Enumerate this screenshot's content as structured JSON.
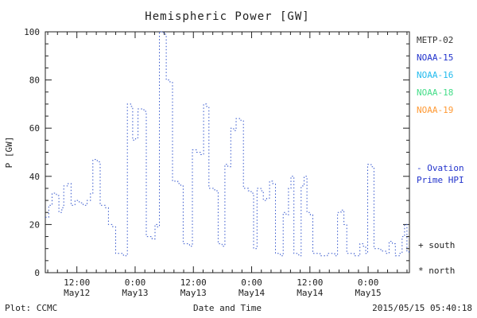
{
  "chart_data": {
    "type": "line",
    "title": "Hemispheric Power [GW]",
    "xlabel": "Date and Time",
    "ylabel": "P [GW]",
    "ylim": [
      0,
      100
    ],
    "yticks": [
      0,
      20,
      40,
      60,
      80,
      100
    ],
    "x_unit": "hours from 2015-05-12 00:00",
    "xlim": [
      5.5,
      80.5
    ],
    "xticks": [
      {
        "hour": 12,
        "time": "12:00",
        "date": "May12"
      },
      {
        "hour": 24,
        "time": "0:00",
        "date": "May13"
      },
      {
        "hour": 36,
        "time": "12:00",
        "date": "May13"
      },
      {
        "hour": 48,
        "time": "0:00",
        "date": "May14"
      },
      {
        "hour": 60,
        "time": "12:00",
        "date": "May14"
      },
      {
        "hour": 72,
        "time": "0:00",
        "date": "May15"
      }
    ],
    "grid": false,
    "line_style": "dotted-step",
    "series": [
      {
        "name": "Ovation Prime HPI",
        "color": "#3355cc",
        "points": [
          [
            5.5,
            23
          ],
          [
            6.2,
            28
          ],
          [
            6.9,
            33
          ],
          [
            7.8,
            32
          ],
          [
            8.3,
            25
          ],
          [
            8.9,
            27
          ],
          [
            9.3,
            36
          ],
          [
            10.2,
            37
          ],
          [
            10.8,
            28
          ],
          [
            11.6,
            30
          ],
          [
            12.5,
            29
          ],
          [
            13.3,
            28
          ],
          [
            14.1,
            30
          ],
          [
            14.8,
            33
          ],
          [
            15.3,
            47
          ],
          [
            16.2,
            46
          ],
          [
            16.8,
            28
          ],
          [
            17.9,
            27
          ],
          [
            18.5,
            20
          ],
          [
            19.4,
            19
          ],
          [
            20.0,
            8
          ],
          [
            21.6,
            7
          ],
          [
            22.4,
            70
          ],
          [
            23.1,
            69
          ],
          [
            23.5,
            55
          ],
          [
            24.1,
            56
          ],
          [
            24.6,
            68
          ],
          [
            25.8,
            67
          ],
          [
            26.3,
            15
          ],
          [
            27.5,
            14
          ],
          [
            28.1,
            20
          ],
          [
            28.6,
            19
          ],
          [
            29.0,
            100
          ],
          [
            29.9,
            99
          ],
          [
            30.4,
            80
          ],
          [
            31.2,
            79
          ],
          [
            31.7,
            38
          ],
          [
            32.8,
            37
          ],
          [
            33.4,
            36
          ],
          [
            33.9,
            12
          ],
          [
            35.2,
            11
          ],
          [
            35.8,
            51
          ],
          [
            36.7,
            50
          ],
          [
            37.4,
            49
          ],
          [
            38.1,
            70
          ],
          [
            38.7,
            69
          ],
          [
            39.2,
            35
          ],
          [
            40.4,
            34
          ],
          [
            41.1,
            12
          ],
          [
            41.9,
            11
          ],
          [
            42.5,
            45
          ],
          [
            43.1,
            44
          ],
          [
            43.7,
            60
          ],
          [
            44.3,
            59
          ],
          [
            44.8,
            64
          ],
          [
            45.8,
            63
          ],
          [
            46.3,
            35
          ],
          [
            47.3,
            34
          ],
          [
            47.9,
            33
          ],
          [
            48.4,
            10
          ],
          [
            49.1,
            35
          ],
          [
            49.9,
            34
          ],
          [
            50.4,
            30
          ],
          [
            51.1,
            31
          ],
          [
            51.7,
            38
          ],
          [
            52.3,
            37
          ],
          [
            52.9,
            8
          ],
          [
            53.9,
            7
          ],
          [
            54.5,
            25
          ],
          [
            55.1,
            24
          ],
          [
            55.6,
            35
          ],
          [
            56.1,
            40
          ],
          [
            56.7,
            8
          ],
          [
            57.7,
            7
          ],
          [
            58.2,
            36
          ],
          [
            58.8,
            40
          ],
          [
            59.4,
            25
          ],
          [
            60.1,
            24
          ],
          [
            60.6,
            8
          ],
          [
            62.1,
            7
          ],
          [
            63.6,
            8
          ],
          [
            65.1,
            7
          ],
          [
            65.7,
            25
          ],
          [
            66.4,
            26
          ],
          [
            67.0,
            20
          ],
          [
            67.6,
            8
          ],
          [
            69.1,
            7
          ],
          [
            70.3,
            12
          ],
          [
            71.0,
            11
          ],
          [
            71.5,
            8
          ],
          [
            71.9,
            45
          ],
          [
            72.6,
            44
          ],
          [
            73.2,
            10
          ],
          [
            74.6,
            9
          ],
          [
            75.6,
            8
          ],
          [
            76.3,
            13
          ],
          [
            77.0,
            12
          ],
          [
            77.6,
            7
          ],
          [
            78.4,
            8
          ],
          [
            79.0,
            15
          ],
          [
            79.5,
            20
          ],
          [
            80.0,
            9
          ],
          [
            80.4,
            8
          ]
        ]
      }
    ]
  },
  "legend": {
    "satellites": [
      {
        "label": "METP-02",
        "color": "#333333"
      },
      {
        "label": "NOAA-15",
        "color": "#2233cc"
      },
      {
        "label": "NOAA-16",
        "color": "#22bbee"
      },
      {
        "label": "NOAA-18",
        "color": "#44dd88"
      },
      {
        "label": "NOAA-19",
        "color": "#ff9933"
      }
    ],
    "ovation_label": "- Ovation Prime HPI",
    "ovation_color": "#2233cc",
    "south_marker": "+ south",
    "north_marker": "* north"
  },
  "footer": {
    "plot_source": "Plot: CCMC",
    "timestamp": "2015/05/15 05:40:18"
  }
}
